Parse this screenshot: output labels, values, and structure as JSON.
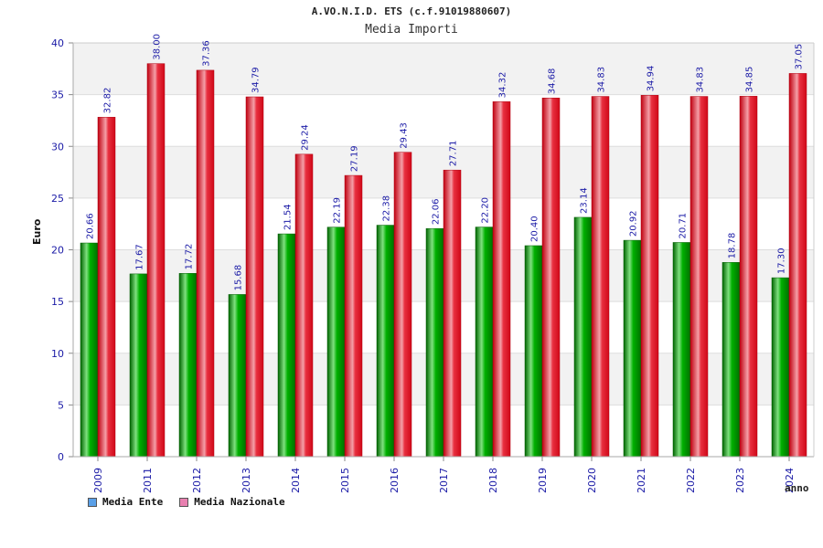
{
  "chart_data": {
    "type": "bar",
    "title": "A.VO.N.I.D. ETS (c.f.91019880607)",
    "subtitle": "Media Importi",
    "xlabel": "anno",
    "ylabel": "Euro",
    "ylim": [
      0,
      40
    ],
    "yticks": [
      0,
      5,
      10,
      15,
      20,
      25,
      30,
      35,
      40
    ],
    "categories": [
      "2009",
      "2011",
      "2012",
      "2013",
      "2014",
      "2015",
      "2016",
      "2017",
      "2018",
      "2019",
      "2020",
      "2021",
      "2022",
      "2023",
      "2024"
    ],
    "series": [
      {
        "name": "Media Ente",
        "color": "#00a000",
        "values": [
          20.66,
          17.67,
          17.72,
          15.68,
          21.54,
          22.19,
          22.38,
          22.06,
          22.2,
          20.4,
          23.14,
          20.92,
          20.71,
          18.78,
          17.3
        ],
        "labels": [
          "20.66",
          "17.67",
          "17.72",
          "15.68",
          "21.54",
          "22.19",
          "22.38",
          "22.06",
          "22.20",
          "20.40",
          "23.14",
          "20.92",
          "20.71",
          "18.78",
          "17.30"
        ]
      },
      {
        "name": "Media Nazionale",
        "color": "#e8202a",
        "values": [
          32.82,
          38.0,
          37.36,
          34.79,
          29.24,
          27.19,
          29.43,
          27.71,
          34.32,
          34.68,
          34.83,
          34.94,
          34.83,
          34.85,
          37.05
        ],
        "labels": [
          "32.82",
          "38.00",
          "37.36",
          "34.79",
          "29.24",
          "27.19",
          "29.43",
          "27.71",
          "34.32",
          "34.68",
          "34.83",
          "34.94",
          "34.83",
          "34.85",
          "37.05"
        ]
      }
    ],
    "legend": [
      {
        "label": "Media Ente",
        "swatch": "#5aa0e8"
      },
      {
        "label": "Media Nazionale",
        "swatch": "#e880b0"
      }
    ]
  }
}
